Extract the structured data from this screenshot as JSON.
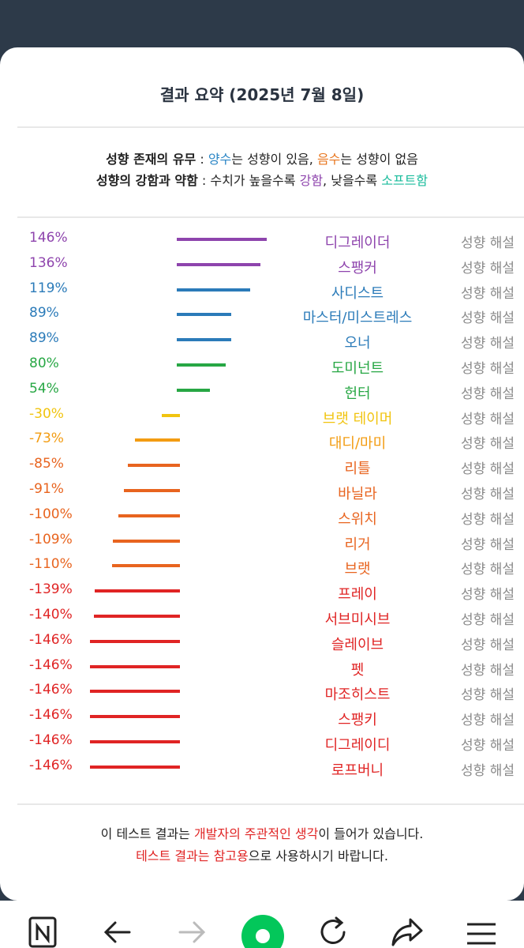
{
  "header": {
    "title": "결과 요약 (2025년 7월 8일)"
  },
  "legend": {
    "line1": {
      "label": "성향 존재의 유무",
      "sep": " : ",
      "plus": "양수",
      "mid": "는 성향이 있음, ",
      "minus": "음수",
      "end": "는 성향이 없음"
    },
    "line2": {
      "label": "성향의 강함과 약함",
      "sep": " : 수치가 높을수록 ",
      "strong": "강함",
      "mid": ", 낮을수록 ",
      "soft": "소프트함"
    }
  },
  "results": [
    {
      "pct": "146%",
      "value": 146,
      "name": "디그레이더",
      "explain": "성향 해설",
      "color": "#8e44ad"
    },
    {
      "pct": "136%",
      "value": 136,
      "name": "스팽커",
      "explain": "성향 해설",
      "color": "#8e44ad"
    },
    {
      "pct": "119%",
      "value": 119,
      "name": "사디스트",
      "explain": "성향 해설",
      "color": "#2b7bb9"
    },
    {
      "pct": "89%",
      "value": 89,
      "name": "마스터/미스트레스",
      "explain": "성향 해설",
      "color": "#2b7bb9"
    },
    {
      "pct": "89%",
      "value": 89,
      "name": "오너",
      "explain": "성향 해설",
      "color": "#2b7bb9"
    },
    {
      "pct": "80%",
      "value": 80,
      "name": "도미넌트",
      "explain": "성향 해설",
      "color": "#27a744"
    },
    {
      "pct": "54%",
      "value": 54,
      "name": "헌터",
      "explain": "성향 해설",
      "color": "#27a744"
    },
    {
      "pct": "-30%",
      "value": -30,
      "name": "브랫 테이머",
      "explain": "성향 해설",
      "color": "#f1c40f"
    },
    {
      "pct": "-73%",
      "value": -73,
      "name": "대디/마미",
      "explain": "성향 해설",
      "color": "#f39c12"
    },
    {
      "pct": "-85%",
      "value": -85,
      "name": "리틀",
      "explain": "성향 해설",
      "color": "#e8641f"
    },
    {
      "pct": "-91%",
      "value": -91,
      "name": "바닐라",
      "explain": "성향 해설",
      "color": "#e8641f"
    },
    {
      "pct": "-100%",
      "value": -100,
      "name": "스위치",
      "explain": "성향 해설",
      "color": "#e8641f"
    },
    {
      "pct": "-109%",
      "value": -109,
      "name": "리거",
      "explain": "성향 해설",
      "color": "#e8641f"
    },
    {
      "pct": "-110%",
      "value": -110,
      "name": "브랫",
      "explain": "성향 해설",
      "color": "#e8641f"
    },
    {
      "pct": "-139%",
      "value": -139,
      "name": "프레이",
      "explain": "성향 해설",
      "color": "#e02424"
    },
    {
      "pct": "-140%",
      "value": -140,
      "name": "서브미시브",
      "explain": "성향 해설",
      "color": "#e02424"
    },
    {
      "pct": "-146%",
      "value": -146,
      "name": "슬레이브",
      "explain": "성향 해설",
      "color": "#e02424"
    },
    {
      "pct": "-146%",
      "value": -146,
      "name": "펫",
      "explain": "성향 해설",
      "color": "#e02424"
    },
    {
      "pct": "-146%",
      "value": -146,
      "name": "마조히스트",
      "explain": "성향 해설",
      "color": "#e02424"
    },
    {
      "pct": "-146%",
      "value": -146,
      "name": "스팽키",
      "explain": "성향 해설",
      "color": "#e02424"
    },
    {
      "pct": "-146%",
      "value": -146,
      "name": "디그레이디",
      "explain": "성향 해설",
      "color": "#e02424"
    },
    {
      "pct": "-146%",
      "value": -146,
      "name": "로프버니",
      "explain": "성향 해설",
      "color": "#e02424"
    }
  ],
  "note": {
    "line1": {
      "a": "이 테스트 결과는 ",
      "b": "개발자의 주관적인 생각",
      "c": "이 들어가 있습니다."
    },
    "line2": {
      "a": "테스트 결과는 참고용",
      "b": "으로 사용하시기 바랍니다."
    }
  },
  "navbar": {
    "items": [
      "naver-icon",
      "back-icon",
      "forward-icon",
      "home-icon",
      "reload-icon",
      "share-icon",
      "menu-icon"
    ],
    "accent": "#03c75a"
  }
}
